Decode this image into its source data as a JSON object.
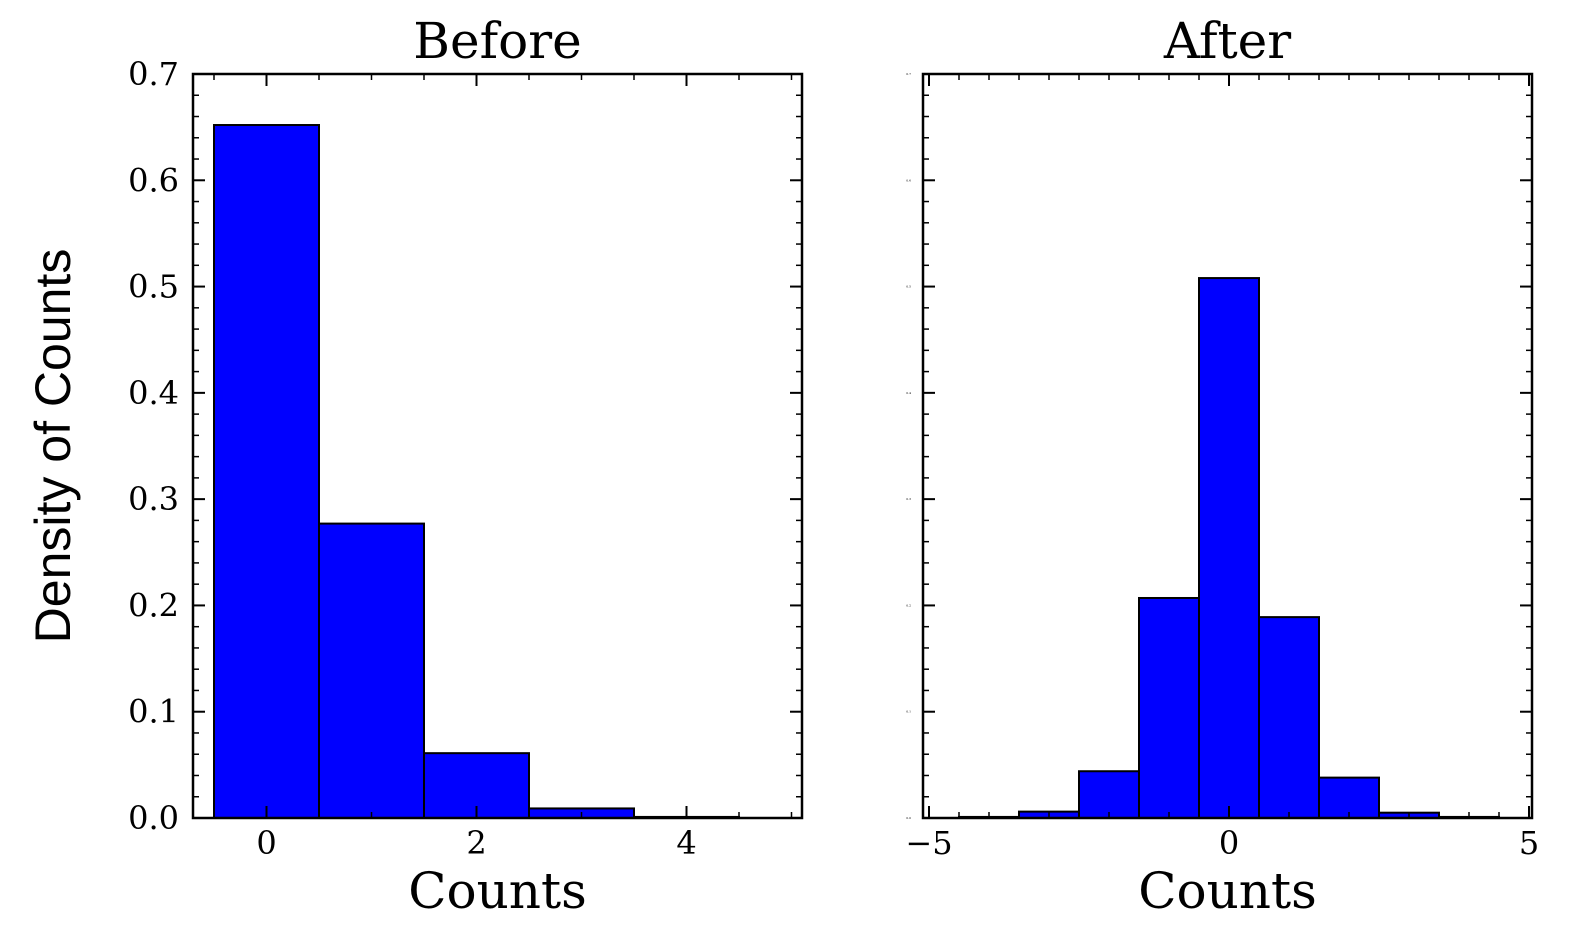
{
  "shared_ylabel": "Density of Counts",
  "colors": {
    "bar_fill": "#0000ff",
    "bar_edge": "#000000",
    "axes": "#000000"
  },
  "chart_data": [
    {
      "type": "bar",
      "title": "Before",
      "xlabel": "Counts",
      "ylabel": "Density of Counts",
      "xlim": [
        -0.7,
        5.1
      ],
      "ylim": [
        0,
        0.7
      ],
      "xticks": [
        0,
        2,
        4
      ],
      "xtick_labels": [
        "0",
        "2",
        "4"
      ],
      "yticks": [
        0.0,
        0.1,
        0.2,
        0.3,
        0.4,
        0.5,
        0.6,
        0.7
      ],
      "ytick_labels": [
        "0.0",
        "0.1",
        "0.2",
        "0.3",
        "0.4",
        "0.5",
        "0.6",
        "0.7"
      ],
      "bin_width": 1,
      "x": [
        0,
        1,
        2,
        3,
        4
      ],
      "values": [
        0.652,
        0.277,
        0.061,
        0.009,
        0.001
      ],
      "grid": false
    },
    {
      "type": "bar",
      "title": "After",
      "xlabel": "Counts",
      "xlim": [
        -5.1,
        5.05
      ],
      "ylim": [
        0,
        0.7
      ],
      "xticks": [
        -5,
        0,
        5
      ],
      "xtick_labels": [
        "−5",
        "0",
        "5"
      ],
      "yticks": [
        0.0,
        0.1,
        0.2,
        0.3,
        0.4,
        0.5,
        0.6,
        0.7
      ],
      "ytick_labels": [
        "0.0",
        "0.1",
        "0.2",
        "0.3",
        "0.4",
        "0.5",
        "0.6",
        "0.7"
      ],
      "ytick_labels_tiny": true,
      "bin_width": 1,
      "x": [
        -4,
        -3,
        -2,
        -1,
        0,
        1,
        2,
        3,
        4
      ],
      "values": [
        0.001,
        0.006,
        0.044,
        0.207,
        0.508,
        0.189,
        0.038,
        0.005,
        0.001
      ],
      "grid": false
    }
  ]
}
